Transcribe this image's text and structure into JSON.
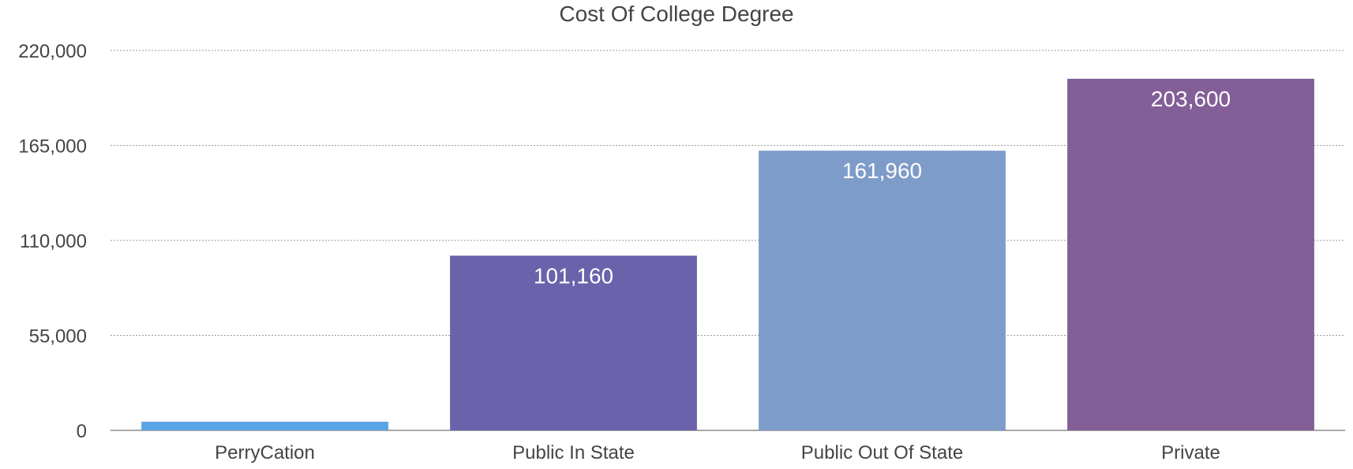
{
  "chart_data": {
    "type": "bar",
    "title": "Cost Of College Degree",
    "xlabel": "",
    "ylabel": "",
    "categories": [
      "PerryCation",
      "Public In State",
      "Public Out Of State",
      "Private"
    ],
    "values": [
      5000,
      101160,
      161960,
      203600
    ],
    "data_labels": [
      "",
      "101,160",
      "161,960",
      "203,600"
    ],
    "bar_colors": [
      "#5aa5e3",
      "#6a62aa",
      "#7e9cc9",
      "#835e97"
    ],
    "ylim": [
      0,
      220000
    ],
    "yticks": [
      0,
      55000,
      110000,
      165000,
      220000
    ],
    "ytick_labels": [
      "0",
      "55,000",
      "110,000",
      "165,000",
      "220,000"
    ],
    "grid": true,
    "legend": "none"
  }
}
